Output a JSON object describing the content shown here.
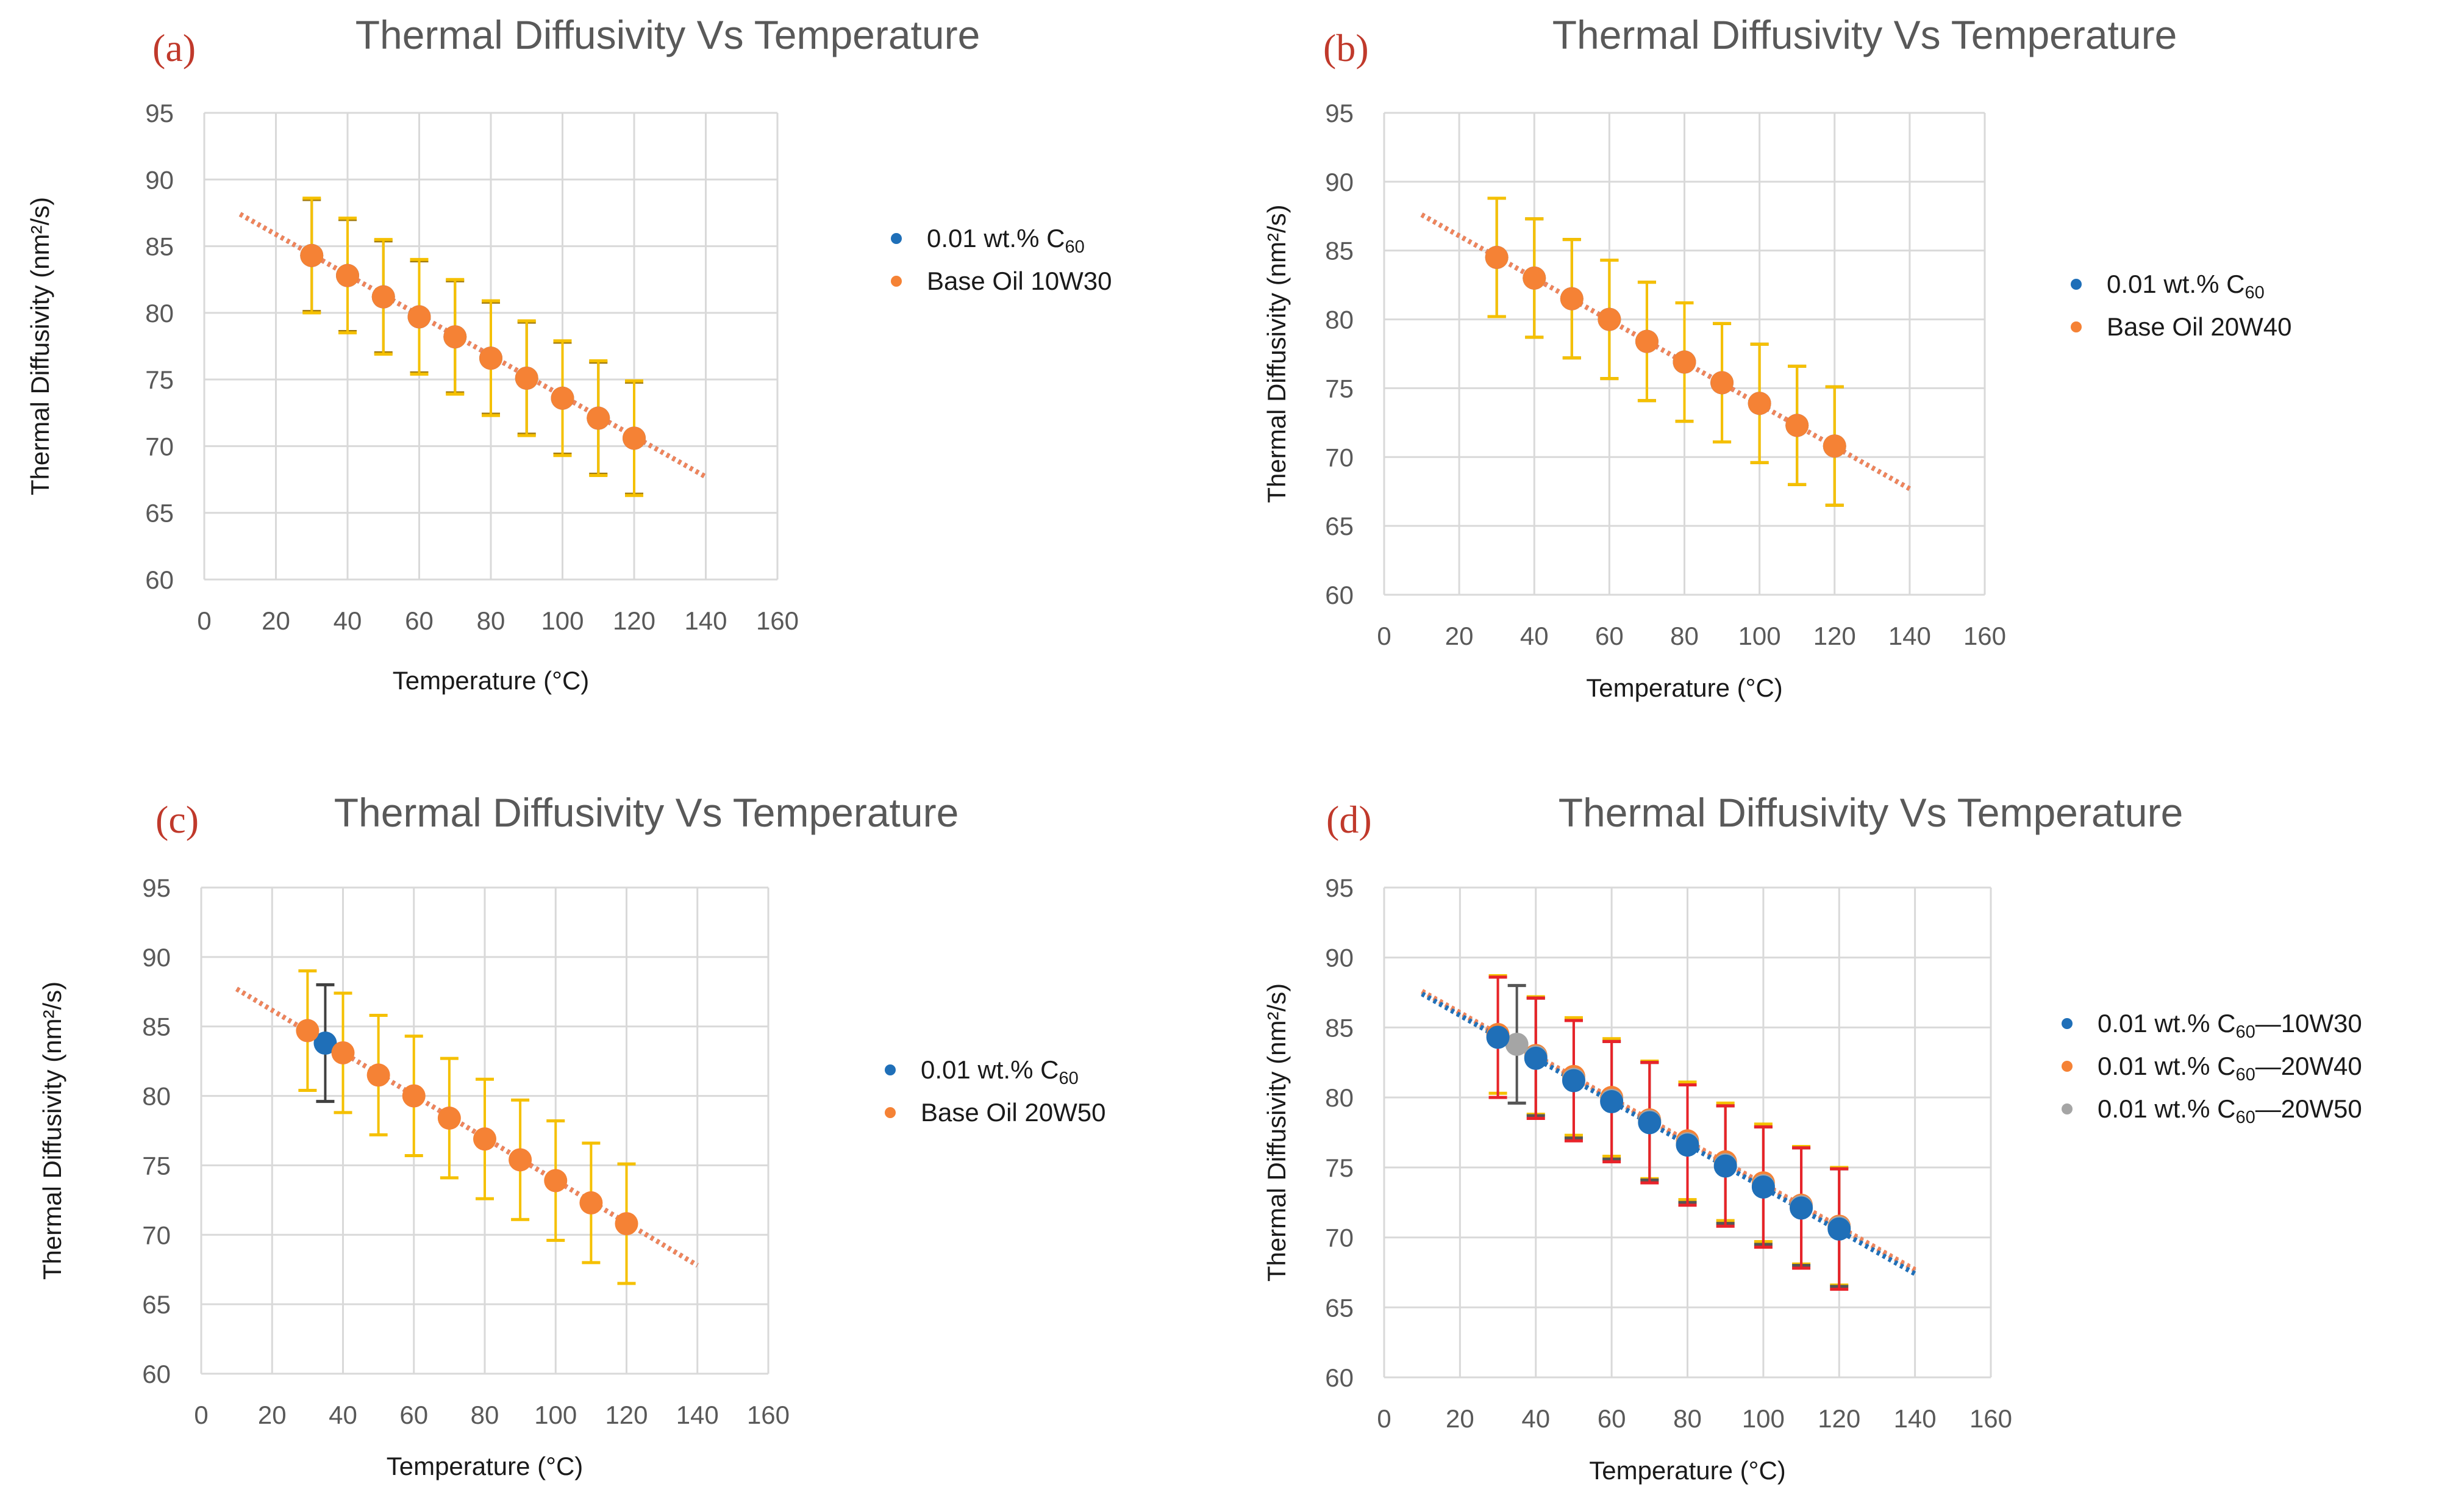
{
  "figure_title": "Thermal Diffusivity Vs Temperature",
  "chart_data": [
    {
      "panel": "(a)",
      "type": "scatter",
      "title": "Thermal Diffusivity Vs Temperature",
      "xlabel": "Temperature (°C)",
      "ylabel": "Thermal Diffusivity (nm²/s)",
      "xlim": [
        0,
        160
      ],
      "ylim": [
        60,
        95
      ],
      "xticks": [
        0,
        20,
        40,
        60,
        80,
        100,
        120,
        140,
        160
      ],
      "yticks": [
        60,
        65,
        70,
        75,
        80,
        85,
        90,
        95
      ],
      "legend": [
        {
          "main": "0.01 wt.% C",
          "sub": "60",
          "rest": "",
          "color": "#1f6fb8"
        },
        {
          "main": "Base Oil 10W30",
          "sub": "",
          "rest": "",
          "color": "#f58235"
        }
      ],
      "series": [
        {
          "name": "0.01 wt.% C60",
          "color": "#1f6fb8",
          "x": [
            30,
            40,
            50,
            60,
            70,
            80,
            90,
            100,
            110,
            120
          ],
          "y": [
            84.3,
            82.8,
            81.2,
            79.7,
            78.2,
            76.6,
            75.1,
            73.6,
            72.1,
            70.6
          ],
          "err": 4.2,
          "errColor": "#a07a10"
        },
        {
          "name": "Base Oil 10W30",
          "color": "#f58235",
          "x": [
            30,
            40,
            50,
            60,
            70,
            80,
            90,
            100,
            110,
            120
          ],
          "y": [
            84.3,
            82.8,
            81.2,
            79.7,
            78.2,
            76.6,
            75.1,
            73.6,
            72.1,
            70.6
          ],
          "err": 4.3,
          "errColor": "#f5c000"
        }
      ],
      "trendlines": [
        {
          "color": "#1f6fb8",
          "x": [
            10,
            140
          ],
          "y": [
            87.4,
            67.7
          ]
        },
        {
          "color": "#f0845a",
          "x": [
            10,
            140
          ],
          "y": [
            87.4,
            67.7
          ]
        }
      ]
    },
    {
      "panel": "(b)",
      "type": "scatter",
      "title": "Thermal Diffusivity Vs Temperature",
      "xlabel": "Temperature (°C)",
      "ylabel": "Thermal Diffusivity (nm²/s)",
      "xlim": [
        0,
        160
      ],
      "ylim": [
        60,
        95
      ],
      "xticks": [
        0,
        20,
        40,
        60,
        80,
        100,
        120,
        140,
        160
      ],
      "yticks": [
        60,
        65,
        70,
        75,
        80,
        85,
        90,
        95
      ],
      "legend": [
        {
          "main": "0.01 wt.% C",
          "sub": "60",
          "rest": "",
          "color": "#1f6fb8"
        },
        {
          "main": "Base Oil 20W40",
          "sub": "",
          "rest": "",
          "color": "#f58235"
        }
      ],
      "series": [
        {
          "name": "0.01 wt.% C60",
          "color": "#1f6fb8",
          "x": [
            30,
            40,
            50,
            60,
            70,
            80,
            90,
            100,
            110,
            120
          ],
          "y": [
            84.5,
            83.0,
            81.5,
            80.0,
            78.4,
            76.9,
            75.4,
            73.9,
            72.3,
            70.8
          ],
          "err": 4.3,
          "errColor": "#a07a10"
        },
        {
          "name": "Base Oil 20W40",
          "color": "#f58235",
          "x": [
            30,
            40,
            50,
            60,
            70,
            80,
            90,
            100,
            110,
            120
          ],
          "y": [
            84.5,
            83.0,
            81.5,
            80.0,
            78.4,
            76.9,
            75.4,
            73.9,
            72.3,
            70.8
          ],
          "err": 4.3,
          "errColor": "#f5c000"
        }
      ],
      "trendlines": [
        {
          "color": "#1f6fb8",
          "x": [
            10,
            140
          ],
          "y": [
            87.6,
            67.7
          ]
        },
        {
          "color": "#f0845a",
          "x": [
            10,
            140
          ],
          "y": [
            87.6,
            67.7
          ]
        }
      ]
    },
    {
      "panel": "(c)",
      "type": "scatter",
      "title": "Thermal Diffusivity Vs Temperature",
      "xlabel": "Temperature (°C)",
      "ylabel": "Thermal Diffusivity (nm²/s)",
      "xlim": [
        0,
        160
      ],
      "ylim": [
        60,
        95
      ],
      "xticks": [
        0,
        20,
        40,
        60,
        80,
        100,
        120,
        140,
        160
      ],
      "yticks": [
        60,
        65,
        70,
        75,
        80,
        85,
        90,
        95
      ],
      "legend": [
        {
          "main": "0.01 wt.% C",
          "sub": "60",
          "rest": "",
          "color": "#1f6fb8"
        },
        {
          "main": "Base Oil 20W50",
          "sub": "",
          "rest": "",
          "color": "#f58235"
        }
      ],
      "series": [
        {
          "name": "0.01 wt.% C60",
          "color": "#1f6fb8",
          "x": [
            35
          ],
          "y": [
            83.8
          ],
          "err": 4.2,
          "errColor": "#404040"
        },
        {
          "name": "Base Oil 20W50",
          "color": "#f58235",
          "x": [
            30,
            40,
            50,
            60,
            70,
            80,
            90,
            100,
            110,
            120
          ],
          "y": [
            84.7,
            83.1,
            81.5,
            80.0,
            78.4,
            76.9,
            75.4,
            73.9,
            72.3,
            70.8
          ],
          "err": 4.3,
          "errColor": "#f5c000"
        }
      ],
      "trendlines": [
        {
          "color": "#1f6fb8",
          "x": [
            10,
            140
          ],
          "y": [
            87.7,
            67.8
          ]
        },
        {
          "color": "#f0845a",
          "x": [
            10,
            140
          ],
          "y": [
            87.7,
            67.8
          ]
        }
      ]
    },
    {
      "panel": "(d)",
      "type": "scatter",
      "title": "Thermal Diffusivity Vs Temperature",
      "xlabel": "Temperature (°C)",
      "ylabel": "Thermal Diffusivity (nm²/s)",
      "xlim": [
        0,
        160
      ],
      "ylim": [
        60,
        95
      ],
      "xticks": [
        0,
        20,
        40,
        60,
        80,
        100,
        120,
        140,
        160
      ],
      "yticks": [
        60,
        65,
        70,
        75,
        80,
        85,
        90,
        95
      ],
      "legend": [
        {
          "main": "0.01 wt.% C",
          "sub": "60",
          "rest": "—10W30",
          "color": "#1f6fb8"
        },
        {
          "main": "0.01 wt.% C",
          "sub": "60",
          "rest": "—20W40",
          "color": "#f58235"
        },
        {
          "main": "0.01 wt.% C",
          "sub": "60",
          "rest": "—20W50",
          "color": "#a5a5a5"
        }
      ],
      "series": [
        {
          "name": "0.01 wt.% C60—20W40",
          "color": "#f58235",
          "x": [
            30,
            40,
            50,
            60,
            70,
            80,
            90,
            100,
            110,
            120
          ],
          "y": [
            84.5,
            83.0,
            81.5,
            80.0,
            78.4,
            76.9,
            75.4,
            73.9,
            72.3,
            70.8
          ],
          "err": 4.2,
          "errColor": "#f5c000"
        },
        {
          "name": "0.01 wt.% C60—20W50",
          "color": "#a5a5a5",
          "x": [
            35,
            40,
            50,
            60,
            70,
            80,
            90,
            100,
            110,
            120
          ],
          "y": [
            83.8,
            82.9,
            81.3,
            79.8,
            78.3,
            76.7,
            75.2,
            73.7,
            72.2,
            70.7
          ],
          "err": 4.2,
          "errColor": "#555555"
        },
        {
          "name": "0.01 wt.% C60—10W30",
          "color": "#1f6fb8",
          "x": [
            30,
            40,
            50,
            60,
            70,
            80,
            90,
            100,
            110,
            120
          ],
          "y": [
            84.3,
            82.8,
            81.2,
            79.7,
            78.2,
            76.6,
            75.1,
            73.6,
            72.1,
            70.6
          ],
          "err": 4.3,
          "errColor": "#e8232a"
        }
      ],
      "trendlines": [
        {
          "color": "#a5a5a5",
          "x": [
            10,
            140
          ],
          "y": [
            87.5,
            67.6
          ]
        },
        {
          "color": "#f0845a",
          "x": [
            10,
            140
          ],
          "y": [
            87.6,
            67.7
          ]
        },
        {
          "color": "#1f6fb8",
          "x": [
            10,
            140
          ],
          "y": [
            87.4,
            67.4
          ]
        }
      ]
    }
  ]
}
